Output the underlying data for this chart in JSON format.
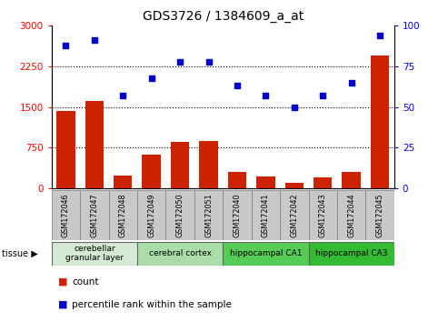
{
  "title": "GDS3726 / 1384609_a_at",
  "samples": [
    "GSM172046",
    "GSM172047",
    "GSM172048",
    "GSM172049",
    "GSM172050",
    "GSM172051",
    "GSM172040",
    "GSM172041",
    "GSM172042",
    "GSM172043",
    "GSM172044",
    "GSM172045"
  ],
  "counts": [
    1420,
    1620,
    230,
    620,
    860,
    880,
    310,
    220,
    100,
    200,
    310,
    2450
  ],
  "percentiles": [
    88,
    91,
    57,
    68,
    78,
    78,
    63,
    57,
    50,
    57,
    65,
    94
  ],
  "left_ylim": [
    0,
    3000
  ],
  "right_ylim": [
    0,
    100
  ],
  "left_yticks": [
    0,
    750,
    1500,
    2250,
    3000
  ],
  "right_yticks": [
    0,
    25,
    50,
    75,
    100
  ],
  "tissue_groups": [
    {
      "label": "cerebellar\ngranular layer",
      "indices": [
        0,
        1,
        2
      ],
      "color": "#d5ead5"
    },
    {
      "label": "cerebral cortex",
      "indices": [
        3,
        4,
        5
      ],
      "color": "#aaddaa"
    },
    {
      "label": "hippocampal CA1",
      "indices": [
        6,
        7,
        8
      ],
      "color": "#55cc55"
    },
    {
      "label": "hippocampal CA3",
      "indices": [
        9,
        10,
        11
      ],
      "color": "#33bb33"
    }
  ],
  "bar_color": "#cc2200",
  "dot_color": "#0000cc",
  "bg_color": "#ffffff",
  "sample_bg": "#c8c8c8",
  "tissue_label": "tissue",
  "legend_count_label": "count",
  "legend_percentile_label": "percentile rank within the sample"
}
